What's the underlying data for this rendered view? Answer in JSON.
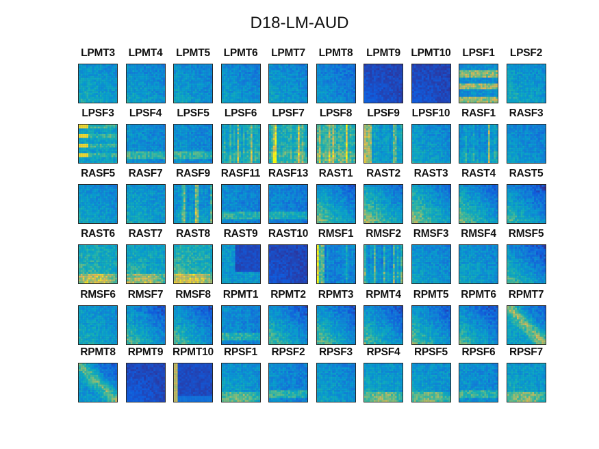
{
  "chart_data": {
    "type": "heatmap",
    "title": "D18-LM-AUD",
    "colormap": "parula",
    "layout": {
      "rows": 6,
      "cols": 10
    },
    "panels": [
      {
        "label": "LPMT3",
        "pattern": "diffuse",
        "intensity": 0.45
      },
      {
        "label": "LPMT4",
        "pattern": "diffuse",
        "intensity": 0.4
      },
      {
        "label": "LPMT5",
        "pattern": "diffuse",
        "intensity": 0.4
      },
      {
        "label": "LPMT6",
        "pattern": "diffuse",
        "intensity": 0.38
      },
      {
        "label": "LPMT7",
        "pattern": "diffuse",
        "intensity": 0.4
      },
      {
        "label": "LPMT8",
        "pattern": "diffuse",
        "intensity": 0.32
      },
      {
        "label": "LPMT9",
        "pattern": "dark",
        "intensity": 0.15
      },
      {
        "label": "LPMT10",
        "pattern": "dark",
        "intensity": 0.12
      },
      {
        "label": "LPSF1",
        "pattern": "hbands",
        "intensity": 0.55
      },
      {
        "label": "LPSF2",
        "pattern": "diffuse",
        "intensity": 0.45
      },
      {
        "label": "LPSF3",
        "pattern": "hbands_left",
        "intensity": 0.7
      },
      {
        "label": "LPSF4",
        "pattern": "lowband",
        "intensity": 0.48
      },
      {
        "label": "LPSF5",
        "pattern": "lowband",
        "intensity": 0.48
      },
      {
        "label": "LPSF6",
        "pattern": "vstripes",
        "intensity": 0.55
      },
      {
        "label": "LPSF7",
        "pattern": "vstripes",
        "intensity": 0.62
      },
      {
        "label": "LPSF8",
        "pattern": "vstripes",
        "intensity": 0.65
      },
      {
        "label": "LPSF9",
        "pattern": "vstripes_left",
        "intensity": 0.55
      },
      {
        "label": "LPSF10",
        "pattern": "diffuse",
        "intensity": 0.42
      },
      {
        "label": "RASF1",
        "pattern": "vstripes",
        "intensity": 0.45
      },
      {
        "label": "RASF3",
        "pattern": "diffuse",
        "intensity": 0.38
      },
      {
        "label": "RASF5",
        "pattern": "diffuse",
        "intensity": 0.42
      },
      {
        "label": "RASF7",
        "pattern": "diffuse",
        "intensity": 0.45
      },
      {
        "label": "RASF9",
        "pattern": "vstripes",
        "intensity": 0.42
      },
      {
        "label": "RASF11",
        "pattern": "lowband",
        "intensity": 0.45
      },
      {
        "label": "RASF13",
        "pattern": "lowband",
        "intensity": 0.42
      },
      {
        "label": "RAST1",
        "pattern": "corner",
        "intensity": 0.45
      },
      {
        "label": "RAST2",
        "pattern": "corner",
        "intensity": 0.5
      },
      {
        "label": "RAST3",
        "pattern": "corner",
        "intensity": 0.5
      },
      {
        "label": "RAST4",
        "pattern": "corner",
        "intensity": 0.45
      },
      {
        "label": "RAST5",
        "pattern": "corner",
        "intensity": 0.38
      },
      {
        "label": "RAST6",
        "pattern": "lowhot",
        "intensity": 0.65
      },
      {
        "label": "RAST7",
        "pattern": "lowhot",
        "intensity": 0.62
      },
      {
        "label": "RAST8",
        "pattern": "lowhot",
        "intensity": 0.68
      },
      {
        "label": "RAST9",
        "pattern": "darkcorner",
        "intensity": 0.35
      },
      {
        "label": "RAST10",
        "pattern": "dark",
        "intensity": 0.1
      },
      {
        "label": "RMSF1",
        "pattern": "vstripes_left",
        "intensity": 0.45
      },
      {
        "label": "RMSF2",
        "pattern": "vstripes",
        "intensity": 0.42
      },
      {
        "label": "RMSF3",
        "pattern": "diffuse",
        "intensity": 0.4
      },
      {
        "label": "RMSF4",
        "pattern": "diffuse",
        "intensity": 0.42
      },
      {
        "label": "RMSF5",
        "pattern": "corner",
        "intensity": 0.38
      },
      {
        "label": "RMSF6",
        "pattern": "diffuse",
        "intensity": 0.45
      },
      {
        "label": "RMSF7",
        "pattern": "corner",
        "intensity": 0.4
      },
      {
        "label": "RMSF8",
        "pattern": "corner",
        "intensity": 0.4
      },
      {
        "label": "RPMT1",
        "pattern": "lowband",
        "intensity": 0.45
      },
      {
        "label": "RPMT2",
        "pattern": "corner",
        "intensity": 0.4
      },
      {
        "label": "RPMT3",
        "pattern": "corner",
        "intensity": 0.42
      },
      {
        "label": "RPMT4",
        "pattern": "corner",
        "intensity": 0.4
      },
      {
        "label": "RPMT5",
        "pattern": "corner",
        "intensity": 0.42
      },
      {
        "label": "RPMT6",
        "pattern": "corner",
        "intensity": 0.38
      },
      {
        "label": "RPMT7",
        "pattern": "diaghot",
        "intensity": 0.6
      },
      {
        "label": "RPMT8",
        "pattern": "diaghot",
        "intensity": 0.55
      },
      {
        "label": "RPMT9",
        "pattern": "dark",
        "intensity": 0.18
      },
      {
        "label": "RPMT10",
        "pattern": "leftbar",
        "intensity": 0.6
      },
      {
        "label": "RPSF1",
        "pattern": "lowhot",
        "intensity": 0.52
      },
      {
        "label": "RPSF2",
        "pattern": "lowband",
        "intensity": 0.45
      },
      {
        "label": "RPSF3",
        "pattern": "diffuse",
        "intensity": 0.4
      },
      {
        "label": "RPSF4",
        "pattern": "lowhot",
        "intensity": 0.55
      },
      {
        "label": "RPSF5",
        "pattern": "lowhot",
        "intensity": 0.52
      },
      {
        "label": "RPSF6",
        "pattern": "lowband",
        "intensity": 0.48
      },
      {
        "label": "RPSF7",
        "pattern": "lowhot",
        "intensity": 0.55
      }
    ]
  }
}
